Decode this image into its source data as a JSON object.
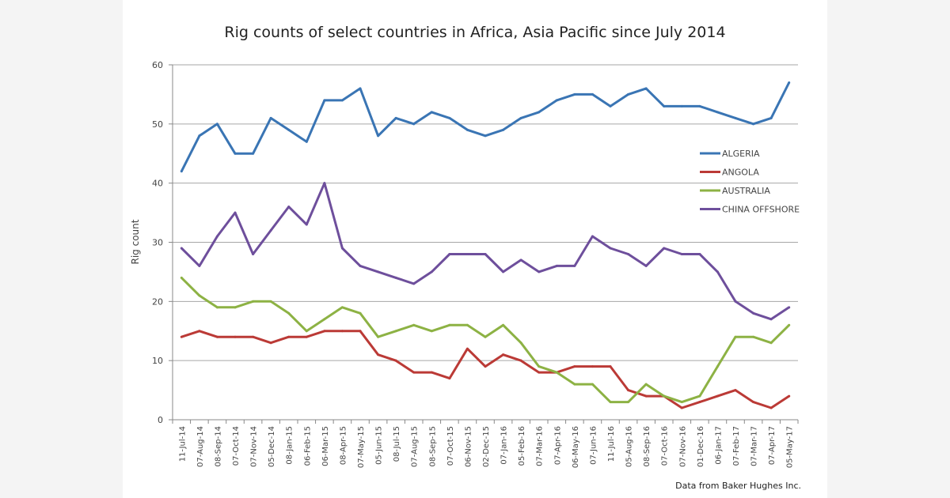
{
  "chart_data": {
    "type": "line",
    "title": "Rig counts of select countries in Africa, Asia Pacific since July 2014",
    "ylabel": "Rig count",
    "xlabel": "",
    "ylim": [
      0,
      60
    ],
    "yticks": [
      0,
      10,
      20,
      30,
      40,
      50,
      60
    ],
    "grid": true,
    "legend": "right",
    "source": "Data from Baker Hughes Inc.",
    "categories": [
      "11-Jul-14",
      "07-Aug-14",
      "08-Sep-14",
      "07-Oct-14",
      "07-Nov-14",
      "05-Dec-14",
      "08-Jan-15",
      "06-Feb-15",
      "06-Mar-15",
      "08-Apr-15",
      "07-May-15",
      "05-Jun-15",
      "08-Jul-15",
      "07-Aug-15",
      "08-Sep-15",
      "07-Oct-15",
      "06-Nov-15",
      "02-Dec-15",
      "07-Jan-16",
      "05-Feb-16",
      "07-Mar-16",
      "07-Apr-16",
      "06-May-16",
      "07-Jun-16",
      "11-Jul-16",
      "05-Aug-16",
      "08-Sep-16",
      "07-Oct-16",
      "07-Nov-16",
      "01-Dec-16",
      "06-Jan-17",
      "07-Feb-17",
      "07-Mar-17",
      "07-Apr-17",
      "05-May-17"
    ],
    "series": [
      {
        "name": "ALGERIA",
        "color": "#3a75b4",
        "values": [
          42,
          48,
          50,
          45,
          45,
          51,
          49,
          47,
          54,
          54,
          56,
          48,
          51,
          50,
          52,
          51,
          49,
          48,
          49,
          51,
          52,
          54,
          55,
          55,
          53,
          55,
          56,
          53,
          53,
          53,
          52,
          51,
          50,
          51,
          57
        ]
      },
      {
        "name": "ANGOLA",
        "color": "#bb3a36",
        "values": [
          14,
          15,
          14,
          14,
          14,
          13,
          14,
          14,
          15,
          15,
          15,
          11,
          10,
          8,
          8,
          7,
          12,
          9,
          11,
          10,
          8,
          8,
          9,
          9,
          9,
          5,
          4,
          4,
          2,
          3,
          4,
          5,
          3,
          2,
          4
        ]
      },
      {
        "name": "AUSTRALIA",
        "color": "#8db244",
        "values": [
          24,
          21,
          19,
          19,
          20,
          20,
          18,
          15,
          17,
          19,
          18,
          14,
          15,
          16,
          15,
          16,
          16,
          14,
          16,
          13,
          9,
          8,
          6,
          6,
          3,
          3,
          6,
          4,
          3,
          4,
          9,
          14,
          14,
          13,
          16
        ]
      },
      {
        "name": "CHINA OFFSHORE",
        "color": "#6e4f9c",
        "values": [
          29,
          26,
          31,
          35,
          28,
          32,
          36,
          33,
          40,
          29,
          26,
          25,
          24,
          23,
          25,
          28,
          28,
          28,
          25,
          27,
          25,
          26,
          26,
          31,
          29,
          28,
          26,
          29,
          28,
          28,
          25,
          20,
          18,
          17,
          19
        ]
      }
    ]
  }
}
